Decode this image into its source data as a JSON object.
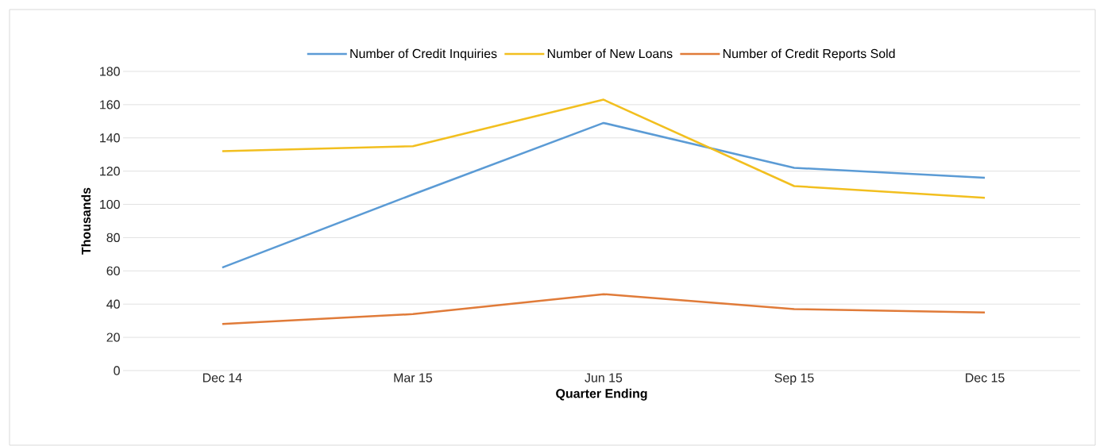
{
  "chart_data": {
    "type": "line",
    "xlabel": "Quarter Ending",
    "ylabel": "Thousands",
    "categories": [
      "Dec 14",
      "Mar 15",
      "Jun 15",
      "Sep 15",
      "Dec 15"
    ],
    "series": [
      {
        "name": "Number of Credit Inquiries",
        "color": "#5b9bd5",
        "values": [
          62,
          106,
          149,
          122,
          116
        ]
      },
      {
        "name": "Number of New Loans",
        "color": "#f2bf1f",
        "values": [
          132,
          135,
          163,
          111,
          104
        ]
      },
      {
        "name": "Number of Credit Reports Sold",
        "color": "#e07b39",
        "values": [
          28,
          34,
          46,
          37,
          35
        ]
      }
    ],
    "ylim": [
      0,
      180
    ],
    "yticks": [
      0,
      20,
      40,
      60,
      80,
      100,
      120,
      140,
      160,
      180
    ],
    "grid": "y",
    "legend": "top",
    "marker": "none",
    "line_style": "solid"
  }
}
